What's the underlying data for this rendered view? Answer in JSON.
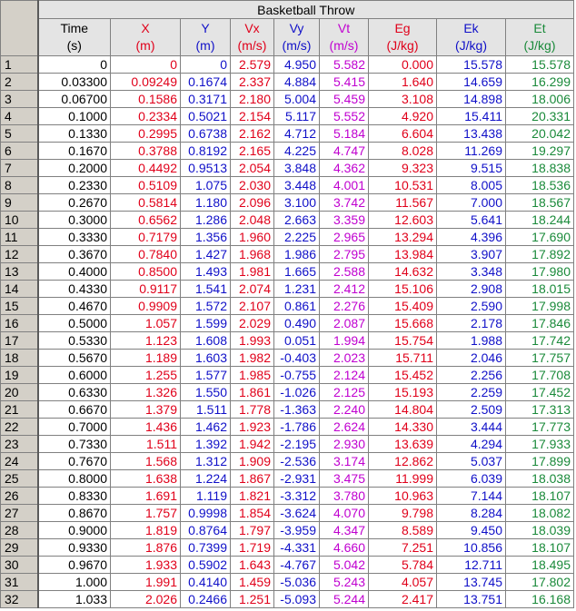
{
  "table_title": "Basketball Throw",
  "colors": {
    "Time": "#000000",
    "X": "#e0001a",
    "Y": "#1010c8",
    "Vx": "#e0001a",
    "Vy": "#1010c8",
    "Vt": "#c000d0",
    "Eg": "#e0001a",
    "Ek": "#1010c8",
    "Et": "#1a8a3a"
  },
  "columns": [
    {
      "name": "Time",
      "unit": "(s)"
    },
    {
      "name": "X",
      "unit": "(m)"
    },
    {
      "name": "Y",
      "unit": "(m)"
    },
    {
      "name": "Vx",
      "unit": "(m/s)"
    },
    {
      "name": "Vy",
      "unit": "(m/s)"
    },
    {
      "name": "Vt",
      "unit": "(m/s)"
    },
    {
      "name": "Eg",
      "unit": "(J/kg)"
    },
    {
      "name": "Ek",
      "unit": "(J/kg)"
    },
    {
      "name": "Et",
      "unit": "(J/kg)"
    }
  ],
  "rows": [
    {
      "n": "1",
      "cells": [
        "0",
        "0",
        "0",
        "2.579",
        "4.950",
        "5.582",
        "0.000",
        "15.578",
        "15.578"
      ]
    },
    {
      "n": "2",
      "cells": [
        "0.03300",
        "0.09249",
        "0.1674",
        "2.337",
        "4.884",
        "5.415",
        "1.640",
        "14.659",
        "16.299"
      ]
    },
    {
      "n": "3",
      "cells": [
        "0.06700",
        "0.1586",
        "0.3171",
        "2.180",
        "5.004",
        "5.459",
        "3.108",
        "14.898",
        "18.006"
      ]
    },
    {
      "n": "4",
      "cells": [
        "0.1000",
        "0.2334",
        "0.5021",
        "2.154",
        "5.117",
        "5.552",
        "4.920",
        "15.411",
        "20.331"
      ]
    },
    {
      "n": "5",
      "cells": [
        "0.1330",
        "0.2995",
        "0.6738",
        "2.162",
        "4.712",
        "5.184",
        "6.604",
        "13.438",
        "20.042"
      ]
    },
    {
      "n": "6",
      "cells": [
        "0.1670",
        "0.3788",
        "0.8192",
        "2.165",
        "4.225",
        "4.747",
        "8.028",
        "11.269",
        "19.297"
      ]
    },
    {
      "n": "7",
      "cells": [
        "0.2000",
        "0.4492",
        "0.9513",
        "2.054",
        "3.848",
        "4.362",
        "9.323",
        "9.515",
        "18.838"
      ]
    },
    {
      "n": "8",
      "cells": [
        "0.2330",
        "0.5109",
        "1.075",
        "2.030",
        "3.448",
        "4.001",
        "10.531",
        "8.005",
        "18.536"
      ]
    },
    {
      "n": "9",
      "cells": [
        "0.2670",
        "0.5814",
        "1.180",
        "2.096",
        "3.100",
        "3.742",
        "11.567",
        "7.000",
        "18.567"
      ]
    },
    {
      "n": "10",
      "cells": [
        "0.3000",
        "0.6562",
        "1.286",
        "2.048",
        "2.663",
        "3.359",
        "12.603",
        "5.641",
        "18.244"
      ]
    },
    {
      "n": "11",
      "cells": [
        "0.3330",
        "0.7179",
        "1.356",
        "1.960",
        "2.225",
        "2.965",
        "13.294",
        "4.396",
        "17.690"
      ]
    },
    {
      "n": "12",
      "cells": [
        "0.3670",
        "0.7840",
        "1.427",
        "1.968",
        "1.986",
        "2.795",
        "13.984",
        "3.907",
        "17.892"
      ]
    },
    {
      "n": "13",
      "cells": [
        "0.4000",
        "0.8500",
        "1.493",
        "1.981",
        "1.665",
        "2.588",
        "14.632",
        "3.348",
        "17.980"
      ]
    },
    {
      "n": "14",
      "cells": [
        "0.4330",
        "0.9117",
        "1.541",
        "2.074",
        "1.231",
        "2.412",
        "15.106",
        "2.908",
        "18.015"
      ]
    },
    {
      "n": "15",
      "cells": [
        "0.4670",
        "0.9909",
        "1.572",
        "2.107",
        "0.861",
        "2.276",
        "15.409",
        "2.590",
        "17.998"
      ]
    },
    {
      "n": "16",
      "cells": [
        "0.5000",
        "1.057",
        "1.599",
        "2.029",
        "0.490",
        "2.087",
        "15.668",
        "2.178",
        "17.846"
      ]
    },
    {
      "n": "17",
      "cells": [
        "0.5330",
        "1.123",
        "1.608",
        "1.993",
        "0.051",
        "1.994",
        "15.754",
        "1.988",
        "17.742"
      ]
    },
    {
      "n": "18",
      "cells": [
        "0.5670",
        "1.189",
        "1.603",
        "1.982",
        "-0.403",
        "2.023",
        "15.711",
        "2.046",
        "17.757"
      ]
    },
    {
      "n": "19",
      "cells": [
        "0.6000",
        "1.255",
        "1.577",
        "1.985",
        "-0.755",
        "2.124",
        "15.452",
        "2.256",
        "17.708"
      ]
    },
    {
      "n": "20",
      "cells": [
        "0.6330",
        "1.326",
        "1.550",
        "1.861",
        "-1.026",
        "2.125",
        "15.193",
        "2.259",
        "17.452"
      ]
    },
    {
      "n": "21",
      "cells": [
        "0.6670",
        "1.379",
        "1.511",
        "1.778",
        "-1.363",
        "2.240",
        "14.804",
        "2.509",
        "17.313"
      ]
    },
    {
      "n": "22",
      "cells": [
        "0.7000",
        "1.436",
        "1.462",
        "1.923",
        "-1.786",
        "2.624",
        "14.330",
        "3.444",
        "17.773"
      ]
    },
    {
      "n": "23",
      "cells": [
        "0.7330",
        "1.511",
        "1.392",
        "1.942",
        "-2.195",
        "2.930",
        "13.639",
        "4.294",
        "17.933"
      ]
    },
    {
      "n": "24",
      "cells": [
        "0.7670",
        "1.568",
        "1.312",
        "1.909",
        "-2.536",
        "3.174",
        "12.862",
        "5.037",
        "17.899"
      ]
    },
    {
      "n": "25",
      "cells": [
        "0.8000",
        "1.638",
        "1.224",
        "1.867",
        "-2.931",
        "3.475",
        "11.999",
        "6.039",
        "18.038"
      ]
    },
    {
      "n": "26",
      "cells": [
        "0.8330",
        "1.691",
        "1.119",
        "1.821",
        "-3.312",
        "3.780",
        "10.963",
        "7.144",
        "18.107"
      ]
    },
    {
      "n": "27",
      "cells": [
        "0.8670",
        "1.757",
        "0.9998",
        "1.854",
        "-3.624",
        "4.070",
        "9.798",
        "8.284",
        "18.082"
      ]
    },
    {
      "n": "28",
      "cells": [
        "0.9000",
        "1.819",
        "0.8764",
        "1.797",
        "-3.959",
        "4.347",
        "8.589",
        "9.450",
        "18.039"
      ]
    },
    {
      "n": "29",
      "cells": [
        "0.9330",
        "1.876",
        "0.7399",
        "1.719",
        "-4.331",
        "4.660",
        "7.251",
        "10.856",
        "18.107"
      ]
    },
    {
      "n": "30",
      "cells": [
        "0.9670",
        "1.933",
        "0.5902",
        "1.643",
        "-4.767",
        "5.042",
        "5.784",
        "12.711",
        "18.495"
      ]
    },
    {
      "n": "31",
      "cells": [
        "1.000",
        "1.991",
        "0.4140",
        "1.459",
        "-5.036",
        "5.243",
        "4.057",
        "13.745",
        "17.802"
      ]
    },
    {
      "n": "32",
      "cells": [
        "1.033",
        "2.026",
        "0.2466",
        "1.251",
        "-5.093",
        "5.244",
        "2.417",
        "13.751",
        "16.168"
      ]
    }
  ]
}
